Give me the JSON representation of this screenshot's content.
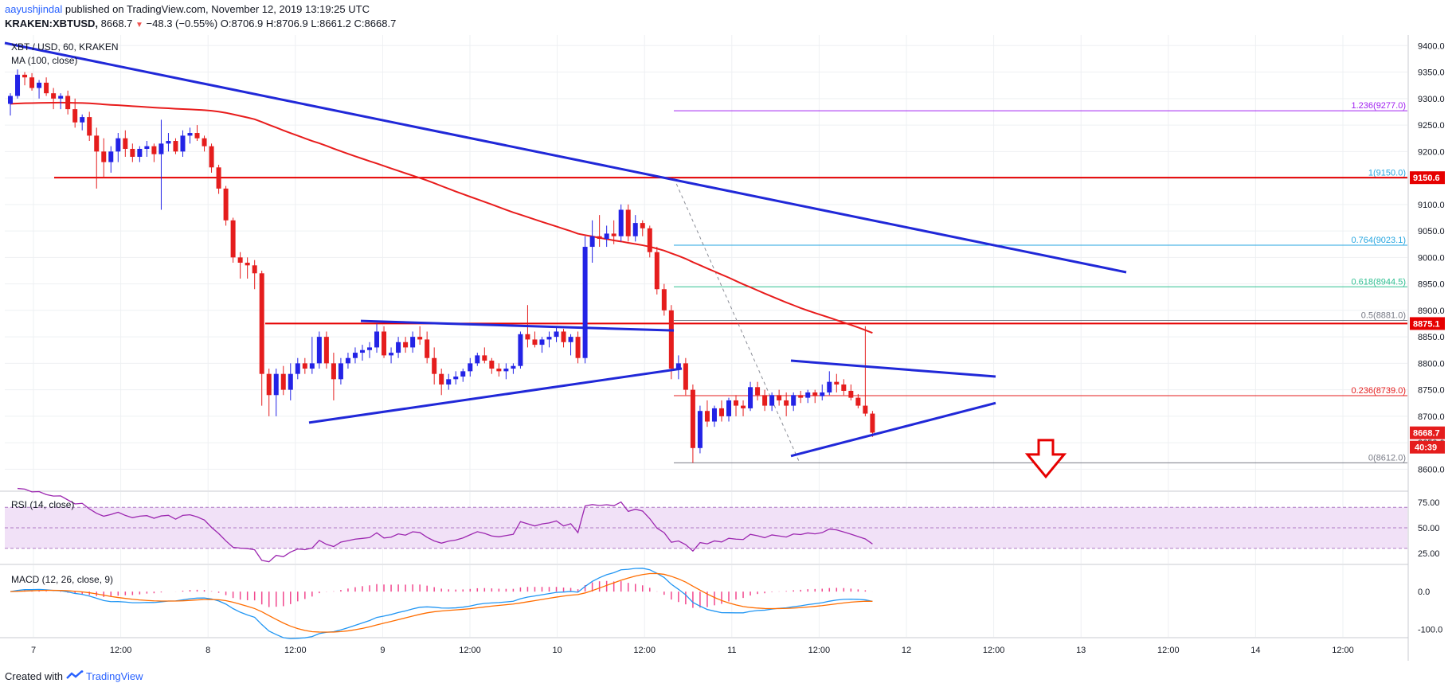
{
  "header": {
    "author": "aayushjindal",
    "published_text": "published on TradingView.com, November 12, 2019 13:19:25 UTC",
    "symbol": "KRAKEN:XBTUSD,",
    "last": "8668.7",
    "change": "−48.3 (−0.55%)",
    "ohlc_o": "O:8706.9",
    "ohlc_h": "H:8706.9",
    "ohlc_l": "L:8661.2",
    "ohlc_c": "C:8668.7"
  },
  "legend": {
    "symbol_line": "XBT / USD, 60, KRAKEN",
    "ma_line": "MA (100, close)"
  },
  "panels": {
    "rsi_label": "RSI (14, close)",
    "macd_label": "MACD (12, 26, close, 9)"
  },
  "footer": {
    "created_with": "Created with",
    "brand": "TradingView"
  },
  "colors": {
    "up": "#2323e6",
    "down": "#e51d1d",
    "trend": "#2028d8",
    "ma": "#e81c1c",
    "resistance": "#e60000",
    "fib_purple": "#a020f0",
    "fib_blue": "#26a6e0",
    "fib_green": "#2ebf91",
    "fib_gray": "#787b86",
    "rsi": "#9c27b0",
    "rsi_band": "#f1e1f7",
    "macd": "#2196f3",
    "signal": "#ff6d00",
    "hist": "#f2478e"
  },
  "chart_data": {
    "type": "candlestick",
    "title": "XBT / USD, 60, KRAKEN",
    "y_axis": {
      "ticks": [
        9400,
        9350,
        9300,
        9250,
        9200,
        9150,
        9100,
        9050,
        9000,
        8950,
        8900,
        8850,
        8800,
        8750,
        8700,
        8650,
        8600
      ],
      "ylim": [
        8560,
        9420
      ]
    },
    "x_axis": {
      "ticks": [
        "7",
        "12:00",
        "8",
        "12:00",
        "9",
        "12:00",
        "10",
        "12:00",
        "11",
        "12:00",
        "12",
        "12:00",
        "13",
        "12:00",
        "14",
        "12:00"
      ]
    },
    "price_labels": [
      {
        "value": 9150.6,
        "text": "9150.6",
        "color": "#e60000"
      },
      {
        "value": 8875.1,
        "text": "8875.1",
        "color": "#e60000"
      },
      {
        "value": 8668.7,
        "text": "8668.7",
        "color": "#e51d1d"
      }
    ],
    "countdown": "40:39",
    "fibonacci": [
      {
        "ratio": "1.236",
        "value": 9277.0,
        "label": "1.236(9277.0)",
        "color": "#a020f0"
      },
      {
        "ratio": "1",
        "value": 9150.0,
        "label": "1(9150.0)",
        "color": "#26a6e0"
      },
      {
        "ratio": "0.764",
        "value": 9023.1,
        "label": "0.764(9023.1)",
        "color": "#26a6e0"
      },
      {
        "ratio": "0.618",
        "value": 8944.5,
        "label": "0.618(8944.5)",
        "color": "#2ebf91"
      },
      {
        "ratio": "0.5",
        "value": 8881.0,
        "label": "0.5(8881.0)",
        "color": "#787b86"
      },
      {
        "ratio": "0.236",
        "value": 8739.0,
        "label": "0.236(8739.0)",
        "color": "#e51d1d"
      },
      {
        "ratio": "0",
        "value": 8612.0,
        "label": "0(8612.0)",
        "color": "#787b86"
      }
    ],
    "horizontal_levels": [
      9150.6,
      8875.1
    ],
    "candles": [
      [
        9290,
        9310,
        9268,
        9305
      ],
      [
        9305,
        9355,
        9300,
        9345
      ],
      [
        9345,
        9350,
        9325,
        9340
      ],
      [
        9340,
        9348,
        9315,
        9320
      ],
      [
        9320,
        9335,
        9300,
        9330
      ],
      [
        9330,
        9340,
        9305,
        9310
      ],
      [
        9310,
        9320,
        9280,
        9300
      ],
      [
        9300,
        9310,
        9280,
        9305
      ],
      [
        9305,
        9315,
        9270,
        9280
      ],
      [
        9280,
        9300,
        9245,
        9255
      ],
      [
        9255,
        9270,
        9240,
        9265
      ],
      [
        9265,
        9275,
        9220,
        9230
      ],
      [
        9230,
        9245,
        9130,
        9200
      ],
      [
        9200,
        9225,
        9150,
        9180
      ],
      [
        9180,
        9210,
        9160,
        9200
      ],
      [
        9200,
        9235,
        9180,
        9225
      ],
      [
        9225,
        9240,
        9190,
        9205
      ],
      [
        9205,
        9215,
        9180,
        9190
      ],
      [
        9190,
        9210,
        9180,
        9205
      ],
      [
        9205,
        9220,
        9190,
        9210
      ],
      [
        9210,
        9215,
        9180,
        9195
      ],
      [
        9195,
        9260,
        9090,
        9215
      ],
      [
        9215,
        9235,
        9200,
        9220
      ],
      [
        9220,
        9225,
        9195,
        9200
      ],
      [
        9200,
        9240,
        9190,
        9230
      ],
      [
        9230,
        9245,
        9215,
        9235
      ],
      [
        9235,
        9250,
        9220,
        9225
      ],
      [
        9225,
        9230,
        9200,
        9210
      ],
      [
        9210,
        9215,
        9160,
        9170
      ],
      [
        9170,
        9175,
        9120,
        9130
      ],
      [
        9130,
        9135,
        9060,
        9070
      ],
      [
        9070,
        9075,
        8990,
        9000
      ],
      [
        9000,
        9010,
        8960,
        8990
      ],
      [
        8990,
        9000,
        8960,
        8985
      ],
      [
        8985,
        8995,
        8940,
        8970
      ],
      [
        8970,
        8975,
        8720,
        8780
      ],
      [
        8780,
        8790,
        8700,
        8740
      ],
      [
        8740,
        8790,
        8700,
        8780
      ],
      [
        8780,
        8795,
        8740,
        8750
      ],
      [
        8750,
        8800,
        8730,
        8780
      ],
      [
        8780,
        8810,
        8770,
        8800
      ],
      [
        8800,
        8810,
        8780,
        8790
      ],
      [
        8790,
        8850,
        8780,
        8800
      ],
      [
        8800,
        8860,
        8790,
        8850
      ],
      [
        8850,
        8860,
        8790,
        8800
      ],
      [
        8800,
        8820,
        8730,
        8770
      ],
      [
        8770,
        8810,
        8760,
        8800
      ],
      [
        8800,
        8820,
        8790,
        8810
      ],
      [
        8810,
        8830,
        8800,
        8820
      ],
      [
        8820,
        8835,
        8805,
        8825
      ],
      [
        8825,
        8840,
        8810,
        8830
      ],
      [
        8830,
        8875,
        8820,
        8860
      ],
      [
        8860,
        8870,
        8810,
        8815
      ],
      [
        8815,
        8830,
        8800,
        8820
      ],
      [
        8820,
        8850,
        8810,
        8840
      ],
      [
        8840,
        8850,
        8820,
        8830
      ],
      [
        8830,
        8860,
        8820,
        8850
      ],
      [
        8850,
        8870,
        8835,
        8845
      ],
      [
        8845,
        8860,
        8800,
        8810
      ],
      [
        8810,
        8830,
        8760,
        8780
      ],
      [
        8780,
        8790,
        8740,
        8760
      ],
      [
        8760,
        8780,
        8750,
        8770
      ],
      [
        8770,
        8785,
        8760,
        8775
      ],
      [
        8775,
        8790,
        8765,
        8785
      ],
      [
        8785,
        8810,
        8775,
        8800
      ],
      [
        8800,
        8820,
        8795,
        8815
      ],
      [
        8815,
        8830,
        8800,
        8805
      ],
      [
        8805,
        8810,
        8780,
        8790
      ],
      [
        8790,
        8800,
        8775,
        8785
      ],
      [
        8785,
        8800,
        8770,
        8790
      ],
      [
        8790,
        8800,
        8780,
        8795
      ],
      [
        8795,
        8860,
        8790,
        8855
      ],
      [
        8855,
        8910,
        8830,
        8845
      ],
      [
        8845,
        8860,
        8830,
        8835
      ],
      [
        8835,
        8850,
        8820,
        8845
      ],
      [
        8845,
        8860,
        8830,
        8850
      ],
      [
        8850,
        8870,
        8840,
        8860
      ],
      [
        8860,
        8865,
        8830,
        8840
      ],
      [
        8840,
        8855,
        8815,
        8850
      ],
      [
        8850,
        8860,
        8800,
        8810
      ],
      [
        8810,
        9040,
        8800,
        9020
      ],
      [
        9020,
        9070,
        8990,
        9040
      ],
      [
        9040,
        9080,
        9020,
        9035
      ],
      [
        9035,
        9060,
        9020,
        9045
      ],
      [
        9045,
        9070,
        9025,
        9040
      ],
      [
        9040,
        9100,
        9030,
        9090
      ],
      [
        9090,
        9100,
        9030,
        9040
      ],
      [
        9040,
        9080,
        9030,
        9065
      ],
      [
        9065,
        9070,
        9040,
        9055
      ],
      [
        9055,
        9060,
        9000,
        9010
      ],
      [
        9010,
        9020,
        8930,
        8940
      ],
      [
        8940,
        8950,
        8890,
        8900
      ],
      [
        8900,
        8910,
        8770,
        8790
      ],
      [
        8790,
        8815,
        8770,
        8800
      ],
      [
        8800,
        8810,
        8740,
        8750
      ],
      [
        8750,
        8760,
        8612,
        8640
      ],
      [
        8640,
        8720,
        8630,
        8710
      ],
      [
        8710,
        8730,
        8680,
        8690
      ],
      [
        8690,
        8720,
        8680,
        8715
      ],
      [
        8715,
        8730,
        8690,
        8700
      ],
      [
        8700,
        8735,
        8690,
        8730
      ],
      [
        8730,
        8740,
        8700,
        8720
      ],
      [
        8720,
        8730,
        8700,
        8715
      ],
      [
        8715,
        8765,
        8710,
        8755
      ],
      [
        8755,
        8765,
        8730,
        8740
      ],
      [
        8740,
        8750,
        8710,
        8720
      ],
      [
        8720,
        8745,
        8710,
        8740
      ],
      [
        8740,
        8750,
        8720,
        8730
      ],
      [
        8730,
        8745,
        8700,
        8720
      ],
      [
        8720,
        8745,
        8710,
        8740
      ],
      [
        8740,
        8748,
        8725,
        8735
      ],
      [
        8735,
        8750,
        8725,
        8745
      ],
      [
        8745,
        8750,
        8725,
        8738
      ],
      [
        8738,
        8760,
        8730,
        8745
      ],
      [
        8745,
        8785,
        8740,
        8765
      ],
      [
        8765,
        8780,
        8745,
        8760
      ],
      [
        8760,
        8770,
        8740,
        8748
      ],
      [
        8748,
        8760,
        8730,
        8735
      ],
      [
        8735,
        8742,
        8715,
        8720
      ],
      [
        8720,
        8870,
        8700,
        8705
      ],
      [
        8705,
        8710,
        8661,
        8669
      ]
    ],
    "rsi_axis": {
      "ticks": [
        75.0,
        50.0,
        25.0
      ],
      "ylim": [
        15,
        85
      ]
    },
    "macd_axis": {
      "ticks": [
        0.0,
        -100.0
      ],
      "ylim": [
        -120,
        70
      ]
    }
  }
}
